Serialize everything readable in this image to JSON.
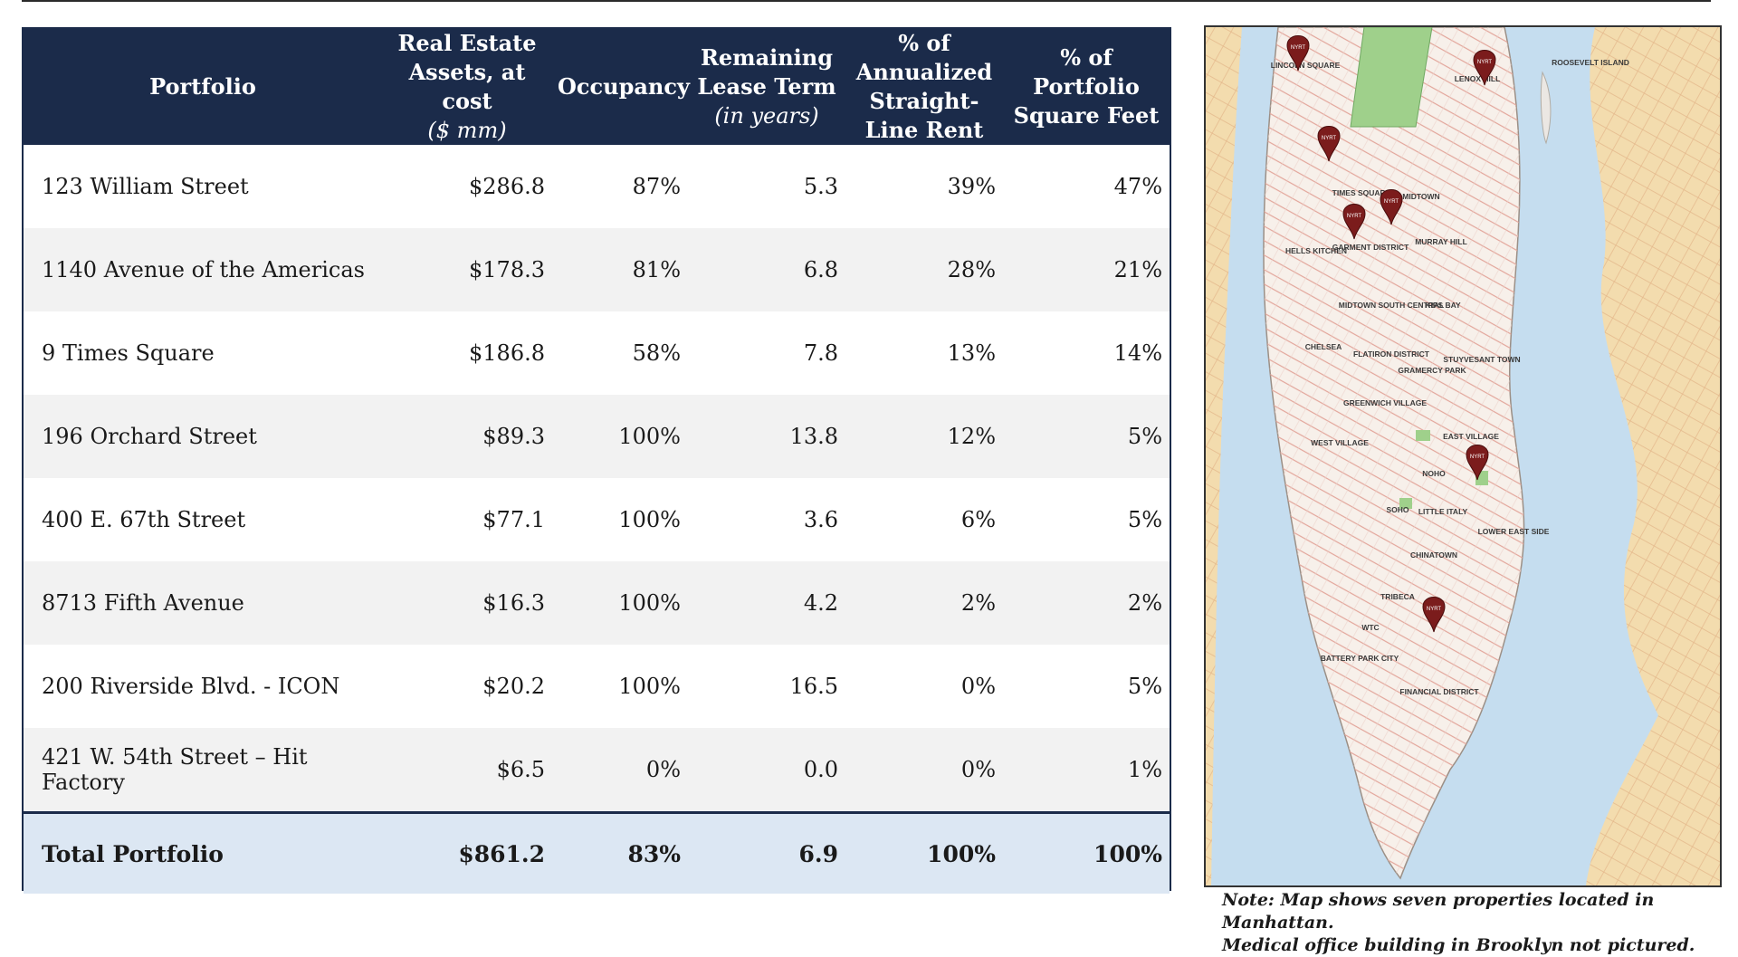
{
  "table": {
    "headers": [
      {
        "main": "Portfolio",
        "sub": ""
      },
      {
        "main": "Real Estate Assets, at cost",
        "sub": "($ mm)"
      },
      {
        "main": "Occupancy",
        "sub": ""
      },
      {
        "main": "Remaining Lease Term",
        "sub": "(in years)"
      },
      {
        "main": "% of Annualized Straight-Line Rent",
        "sub": ""
      },
      {
        "main": "% of Portfolio Square Feet",
        "sub": ""
      }
    ],
    "rows": [
      {
        "name": "123 William Street",
        "assets": "$286.8",
        "occupancy": "87%",
        "lease": "5.3",
        "rent": "39%",
        "sqft": "47%"
      },
      {
        "name": "1140 Avenue of the Americas",
        "assets": "$178.3",
        "occupancy": "81%",
        "lease": "6.8",
        "rent": "28%",
        "sqft": "21%"
      },
      {
        "name": "9 Times Square",
        "assets": "$186.8",
        "occupancy": "58%",
        "lease": "7.8",
        "rent": "13%",
        "sqft": "14%"
      },
      {
        "name": "196 Orchard Street",
        "assets": "$89.3",
        "occupancy": "100%",
        "lease": "13.8",
        "rent": "12%",
        "sqft": "5%"
      },
      {
        "name": "400 E. 67th Street",
        "assets": "$77.1",
        "occupancy": "100%",
        "lease": "3.6",
        "rent": "6%",
        "sqft": "5%"
      },
      {
        "name": "8713 Fifth Avenue",
        "assets": "$16.3",
        "occupancy": "100%",
        "lease": "4.2",
        "rent": "2%",
        "sqft": "2%"
      },
      {
        "name": "200 Riverside Blvd. - ICON",
        "assets": "$20.2",
        "occupancy": "100%",
        "lease": "16.5",
        "rent": "0%",
        "sqft": "5%"
      },
      {
        "name": "421 W. 54th Street – Hit Factory",
        "assets": "$6.5",
        "occupancy": "0%",
        "lease": "0.0",
        "rent": "0%",
        "sqft": "1%"
      }
    ],
    "total": {
      "name": "Total Portfolio",
      "assets": "$861.2",
      "occupancy": "83%",
      "lease": "6.9",
      "rent": "100%",
      "sqft": "100%"
    }
  },
  "map": {
    "neighborhoods": [
      {
        "id": "lincoln-square",
        "label": "LINCOLN SQUARE"
      },
      {
        "id": "lenox-hill",
        "label": "LENOX HILL"
      },
      {
        "id": "roosevelt-island",
        "label": "ROOSEVELT ISLAND"
      },
      {
        "id": "times-square",
        "label": "TIMES SQUARE"
      },
      {
        "id": "midtown",
        "label": "MIDTOWN"
      },
      {
        "id": "hells-kitchen",
        "label": "HELLS KITCHEN"
      },
      {
        "id": "garment-district",
        "label": "GARMENT DISTRICT"
      },
      {
        "id": "murray-hill",
        "label": "MURRAY HILL"
      },
      {
        "id": "midtown-south-central",
        "label": "MIDTOWN SOUTH CENTRAL"
      },
      {
        "id": "kips-bay",
        "label": "KIPS BAY"
      },
      {
        "id": "chelsea",
        "label": "CHELSEA"
      },
      {
        "id": "flatiron-district",
        "label": "FLATIRON DISTRICT"
      },
      {
        "id": "stuyvesant-town",
        "label": "STUYVESANT TOWN"
      },
      {
        "id": "gramercy-park",
        "label": "GRAMERCY PARK"
      },
      {
        "id": "greenwich-village",
        "label": "GREENWICH VILLAGE"
      },
      {
        "id": "west-village",
        "label": "WEST VILLAGE"
      },
      {
        "id": "east-village",
        "label": "EAST VILLAGE"
      },
      {
        "id": "noho",
        "label": "NOHO"
      },
      {
        "id": "soho",
        "label": "SOHO"
      },
      {
        "id": "little-italy",
        "label": "LITTLE ITALY"
      },
      {
        "id": "lower-east-side",
        "label": "LOWER EAST SIDE"
      },
      {
        "id": "chinatown",
        "label": "CHINATOWN"
      },
      {
        "id": "tribeca",
        "label": "TRIBECA"
      },
      {
        "id": "wtc",
        "label": "WTC"
      },
      {
        "id": "battery-park-city",
        "label": "BATTERY PARK CITY"
      },
      {
        "id": "financial-district",
        "label": "FINANCIAL DISTRICT"
      }
    ],
    "marker_label": "NYRT",
    "note_line1": "Note: Map shows seven properties located in Manhattan.",
    "note_line2": "Medical office building in Brooklyn not pictured."
  }
}
